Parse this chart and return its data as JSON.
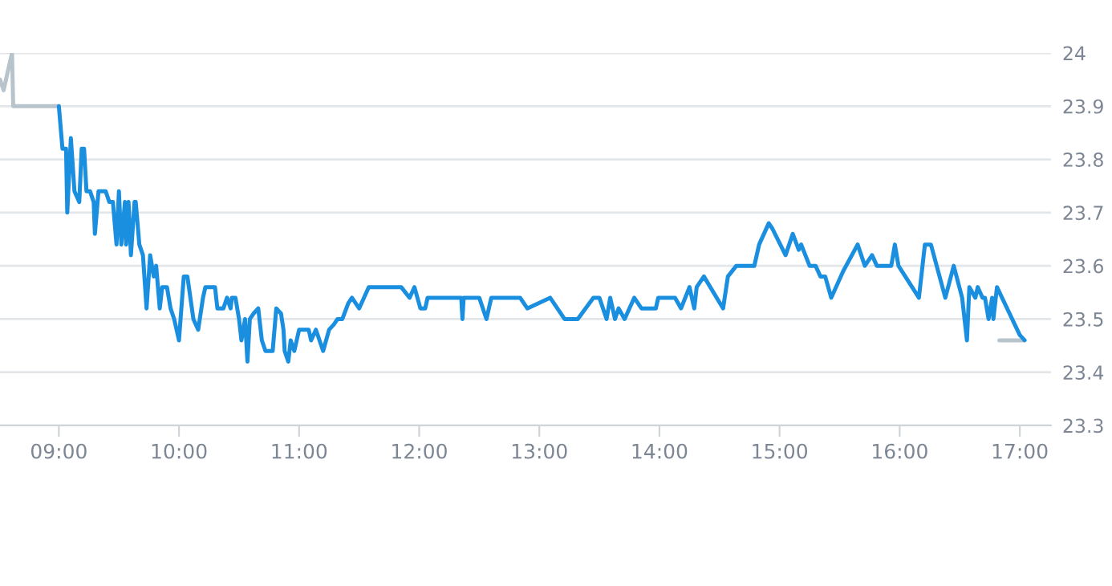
{
  "chart_data": {
    "type": "line",
    "grid": "y",
    "xlim": [
      8.51,
      17.26
    ],
    "ylim": [
      23.3,
      24.0
    ],
    "xticks": [
      {
        "value": 9,
        "label": "09:00"
      },
      {
        "value": 10,
        "label": "10:00"
      },
      {
        "value": 11,
        "label": "11:00"
      },
      {
        "value": 12,
        "label": "12:00"
      },
      {
        "value": 13,
        "label": "13:00"
      },
      {
        "value": 14,
        "label": "14:00"
      },
      {
        "value": 15,
        "label": "15:00"
      },
      {
        "value": 16,
        "label": "16:00"
      },
      {
        "value": 17,
        "label": "17:00"
      }
    ],
    "yticks": [
      23.3,
      23.4,
      23.5,
      23.6,
      23.7,
      23.8,
      23.9,
      24
    ],
    "series": [
      {
        "color": "#b8c4cc",
        "x": [
          8.51,
          8.54,
          8.61,
          8.62,
          9.0
        ],
        "values": [
          23.95,
          23.93,
          24.0,
          23.9,
          23.9
        ]
      },
      {
        "color": "#b8c4cc",
        "x": [
          16.83,
          17.03
        ],
        "values": [
          23.46,
          23.46
        ]
      },
      {
        "color": "#1a8fe0",
        "x": [
          9.0,
          9.03,
          9.06,
          9.07,
          9.1,
          9.13,
          9.17,
          9.19,
          9.21,
          9.23,
          9.26,
          9.29,
          9.3,
          9.33,
          9.39,
          9.42,
          9.45,
          9.48,
          9.5,
          9.52,
          9.55,
          9.56,
          9.58,
          9.6,
          9.63,
          9.64,
          9.67,
          9.7,
          9.73,
          9.76,
          9.79,
          9.81,
          9.84,
          9.86,
          9.9,
          9.93,
          9.96,
          10.0,
          10.04,
          10.07,
          10.12,
          10.16,
          10.2,
          10.22,
          10.3,
          10.32,
          10.37,
          10.4,
          10.43,
          10.44,
          10.47,
          10.5,
          10.52,
          10.55,
          10.57,
          10.59,
          10.62,
          10.66,
          10.69,
          10.72,
          10.78,
          10.81,
          10.85,
          10.87,
          10.88,
          10.91,
          10.93,
          10.96,
          11.0,
          11.04,
          11.08,
          11.1,
          11.14,
          11.2,
          11.25,
          11.29,
          11.32,
          11.36,
          11.41,
          11.44,
          11.5,
          11.58,
          11.85,
          11.92,
          11.96,
          12.01,
          12.05,
          12.07,
          12.35,
          12.36,
          12.37,
          12.5,
          12.56,
          12.6,
          12.84,
          12.9,
          13.09,
          13.21,
          13.32,
          13.45,
          13.5,
          13.56,
          13.59,
          13.63,
          13.66,
          13.71,
          13.79,
          13.85,
          13.97,
          13.99,
          14.13,
          14.18,
          14.25,
          14.29,
          14.31,
          14.37,
          14.53,
          14.57,
          14.64,
          14.79,
          14.83,
          14.87,
          14.91,
          14.94,
          15.05,
          15.11,
          15.16,
          15.18,
          15.25,
          15.3,
          15.34,
          15.38,
          15.43,
          15.53,
          15.65,
          15.71,
          15.77,
          15.81,
          15.93,
          15.96,
          15.99,
          16.16,
          16.21,
          16.26,
          16.38,
          16.45,
          16.52,
          16.56,
          16.58,
          16.63,
          16.65,
          16.69,
          16.71,
          16.74,
          16.77,
          16.78,
          16.81,
          17.0,
          17.04
        ],
        "values": [
          23.9,
          23.82,
          23.82,
          23.7,
          23.84,
          23.74,
          23.72,
          23.82,
          23.82,
          23.74,
          23.74,
          23.72,
          23.66,
          23.74,
          23.74,
          23.72,
          23.72,
          23.64,
          23.74,
          23.64,
          23.72,
          23.64,
          23.72,
          23.62,
          23.72,
          23.72,
          23.64,
          23.62,
          23.52,
          23.62,
          23.58,
          23.6,
          23.52,
          23.56,
          23.56,
          23.52,
          23.5,
          23.46,
          23.58,
          23.58,
          23.5,
          23.48,
          23.54,
          23.56,
          23.56,
          23.52,
          23.52,
          23.54,
          23.52,
          23.54,
          23.54,
          23.5,
          23.46,
          23.5,
          23.42,
          23.5,
          23.51,
          23.52,
          23.46,
          23.44,
          23.44,
          23.52,
          23.51,
          23.48,
          23.44,
          23.42,
          23.46,
          23.44,
          23.48,
          23.48,
          23.48,
          23.46,
          23.48,
          23.44,
          23.48,
          23.49,
          23.5,
          23.5,
          23.53,
          23.54,
          23.52,
          23.56,
          23.56,
          23.54,
          23.56,
          23.52,
          23.52,
          23.54,
          23.54,
          23.5,
          23.54,
          23.54,
          23.5,
          23.54,
          23.54,
          23.52,
          23.54,
          23.5,
          23.5,
          23.54,
          23.54,
          23.5,
          23.54,
          23.5,
          23.52,
          23.5,
          23.54,
          23.52,
          23.52,
          23.54,
          23.54,
          23.52,
          23.56,
          23.52,
          23.56,
          23.58,
          23.52,
          23.58,
          23.6,
          23.6,
          23.64,
          23.66,
          23.68,
          23.67,
          23.62,
          23.66,
          23.63,
          23.64,
          23.6,
          23.6,
          23.58,
          23.58,
          23.54,
          23.59,
          23.64,
          23.6,
          23.62,
          23.6,
          23.6,
          23.64,
          23.6,
          23.54,
          23.64,
          23.64,
          23.54,
          23.6,
          23.54,
          23.46,
          23.56,
          23.54,
          23.56,
          23.54,
          23.54,
          23.5,
          23.54,
          23.5,
          23.56,
          23.47,
          23.46
        ]
      }
    ]
  }
}
